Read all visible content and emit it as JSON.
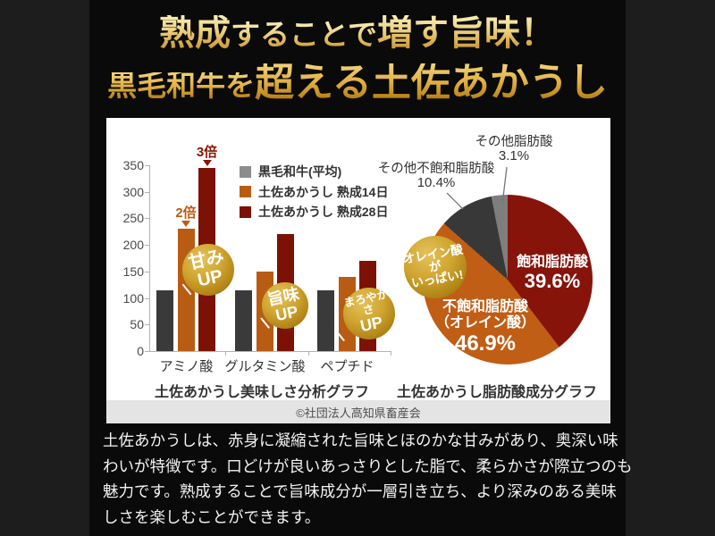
{
  "header": {
    "line1_segments": [
      {
        "text": "熟成",
        "cls": "lg"
      },
      {
        "text": "することで",
        "cls": "sm"
      },
      {
        "text": "増す旨味！",
        "cls": "lg"
      }
    ],
    "line2_segments": [
      {
        "text": "黒毛和牛を",
        "cls": "sm"
      },
      {
        "text": "超える土佐あかうし",
        "cls": "lg"
      }
    ]
  },
  "chart_data": [
    {
      "type": "bar",
      "title": "土佐あかうし美味しさ分析グラフ",
      "categories": [
        "アミノ酸",
        "グルタミン酸",
        "ペプチド"
      ],
      "series": [
        {
          "name": "黒毛和牛(平均)",
          "color": "#3a3a3a",
          "legend_color": "#8c8c8c",
          "values": [
            115,
            115,
            115
          ]
        },
        {
          "name": "土佐あかうし 熟成14日",
          "color": "#b85c13",
          "legend_color": "#b85c13",
          "values": [
            230,
            150,
            140
          ]
        },
        {
          "name": "土佐あかうし 熟成28日",
          "color": "#7c1206",
          "legend_color": "#7c1206",
          "values": [
            345,
            220,
            170
          ]
        }
      ],
      "ylim": [
        0,
        350
      ],
      "yticks": [
        0,
        50,
        100,
        150,
        200,
        250,
        300,
        350
      ],
      "grid": false,
      "legend_position": "top-right",
      "annotations": [
        {
          "text": "2倍",
          "color": "#c05a11",
          "group": 0,
          "series": 1
        },
        {
          "text": "3倍",
          "color": "#8b1403",
          "group": 0,
          "series": 2
        }
      ],
      "badges": [
        {
          "line1": "甘み",
          "line2": "UP",
          "category": "アミノ酸"
        },
        {
          "line1": "旨味",
          "line2": "UP",
          "category": "グルタミン酸"
        },
        {
          "line1": "まろやかさ",
          "line2": "UP",
          "category": "ペプチド"
        }
      ]
    },
    {
      "type": "pie",
      "title": "土佐あかうし脂肪酸成分グラフ",
      "start_angle_deg": 0,
      "direction": "clockwise",
      "slices": [
        {
          "label": "飽和脂肪酸",
          "pct": 39.6,
          "pct_label": "39.6%",
          "color": "#86140b"
        },
        {
          "label": "不飽和脂肪酸（オレイン酸）",
          "label_line1": "不飽和脂肪酸",
          "label_line2": "（オレイン酸）",
          "pct": 46.9,
          "pct_label": "46.9%",
          "color": "#c05e15"
        },
        {
          "label": "その他不飽和脂肪酸",
          "pct": 10.4,
          "pct_label": "10.4%",
          "color": "#383838"
        },
        {
          "label": "その他脂肪酸",
          "pct": 3.1,
          "pct_label": "3.1%",
          "color": "#7e7e7e"
        }
      ],
      "badge": {
        "line1": "オレイン酸が",
        "line2": "いっぱい!"
      }
    }
  ],
  "footer": {
    "credit": "©社団法人高知県畜産会"
  },
  "description": {
    "lines": [
      "土佐あかうしは、赤身に凝縮された旨味とほのかな甘みがあり、奥深い味",
      "わいが特徴です。口どけが良いあっさりとした脂で、柔らかさが際立つのも",
      "魅力です。熟成することで旨味成分が一層引き立ち、より深みのある美味",
      "しさを楽しむことができます。"
    ]
  }
}
